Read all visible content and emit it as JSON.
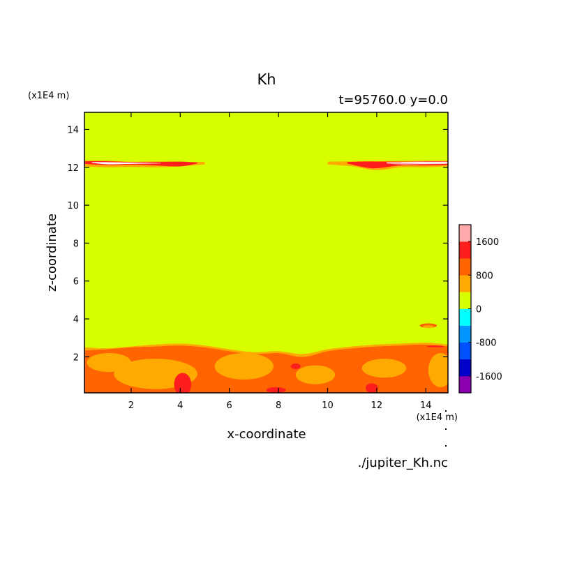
{
  "chart_data": {
    "type": "heatmap",
    "title": "Kh",
    "subtitle": "t=95760.0 y=0.0",
    "xlabel": "x-coordinate",
    "ylabel": "z-coordinate",
    "x_unit": "(x1E4 m)",
    "y_unit": "(x1E4 m)",
    "source_label": "./jupiter_Kh.nc",
    "xlim": [
      0.1,
      14.9
    ],
    "ylim": [
      0.1,
      14.9
    ],
    "xticks": [
      2,
      4,
      6,
      8,
      10,
      12,
      14
    ],
    "yticks": [
      2,
      4,
      6,
      8,
      10,
      12,
      14
    ],
    "colorbar": {
      "levels": [
        -2000,
        -1600,
        -1200,
        -800,
        -400,
        0,
        400,
        800,
        1200,
        1600,
        2000
      ],
      "colors": [
        "#8c00b0",
        "#0000c8",
        "#0050ff",
        "#0096ff",
        "#00ffff",
        "#d8ff00",
        "#ffaa00",
        "#ff6400",
        "#ff1e1e",
        "#ffaaaa"
      ],
      "tick_values": [
        -1600,
        -800,
        0,
        800,
        1600
      ],
      "tick_labels": [
        "-1600",
        "-800",
        "0",
        "800",
        "1600"
      ]
    },
    "background_value": 200,
    "regions": [
      {
        "name": "lower-layer-orange",
        "value": 1000,
        "kind": "ribbon",
        "x": [
          0.1,
          1,
          2,
          3,
          4,
          5,
          6,
          7,
          8,
          9,
          10,
          11,
          12,
          13,
          14,
          14.9
        ],
        "top": [
          2.35,
          2.4,
          2.5,
          2.55,
          2.6,
          2.5,
          2.3,
          2.15,
          2.2,
          2.0,
          2.3,
          2.45,
          2.55,
          2.6,
          2.65,
          2.55
        ],
        "bottom": [
          0.1,
          0.1,
          0.1,
          0.1,
          0.1,
          0.1,
          0.1,
          0.1,
          0.1,
          0.1,
          0.1,
          0.1,
          0.1,
          0.1,
          0.1,
          0.1
        ]
      },
      {
        "name": "lower-layer-light-orange",
        "value": 600,
        "kind": "ribbon",
        "x": [
          0.1,
          1,
          2,
          3,
          4,
          5,
          6,
          7,
          8,
          9,
          10,
          11,
          12,
          13,
          14,
          14.9
        ],
        "top": [
          2.5,
          2.45,
          2.55,
          2.65,
          2.7,
          2.6,
          2.4,
          2.25,
          2.3,
          2.15,
          2.4,
          2.55,
          2.65,
          2.7,
          2.75,
          2.65
        ],
        "bottom": [
          2.35,
          2.4,
          2.5,
          2.55,
          2.6,
          2.5,
          2.3,
          2.15,
          2.2,
          2.0,
          2.3,
          2.45,
          2.55,
          2.6,
          2.65,
          2.55
        ]
      },
      {
        "name": "blob-a",
        "value": 600,
        "kind": "ellipse",
        "cx": 1.1,
        "cz": 1.7,
        "rx": 0.9,
        "rz": 0.5
      },
      {
        "name": "blob-b",
        "value": 600,
        "kind": "ellipse",
        "cx": 3.0,
        "cz": 1.1,
        "rx": 1.7,
        "rz": 0.8
      },
      {
        "name": "blob-c",
        "value": 600,
        "kind": "ellipse",
        "cx": 6.6,
        "cz": 1.5,
        "rx": 1.2,
        "rz": 0.7
      },
      {
        "name": "blob-d",
        "value": 600,
        "kind": "ellipse",
        "cx": 9.5,
        "cz": 1.05,
        "rx": 0.8,
        "rz": 0.5
      },
      {
        "name": "blob-e",
        "value": 600,
        "kind": "ellipse",
        "cx": 12.3,
        "cz": 1.4,
        "rx": 0.9,
        "rz": 0.5
      },
      {
        "name": "blob-f",
        "value": 600,
        "kind": "ellipse",
        "cx": 14.6,
        "cz": 1.3,
        "rx": 0.5,
        "rz": 0.9
      },
      {
        "name": "blob-g",
        "value": 1400,
        "kind": "ellipse",
        "cx": 4.1,
        "cz": 0.55,
        "rx": 0.35,
        "rz": 0.6
      },
      {
        "name": "blob-h",
        "value": 1400,
        "kind": "ellipse",
        "cx": 8.7,
        "cz": 1.5,
        "rx": 0.2,
        "rz": 0.15
      },
      {
        "name": "blob-i",
        "value": 1400,
        "kind": "ellipse",
        "cx": 11.8,
        "cz": 0.35,
        "rx": 0.25,
        "rz": 0.25
      },
      {
        "name": "blob-j",
        "value": 1400,
        "kind": "ellipse",
        "cx": 7.9,
        "cz": 0.25,
        "rx": 0.4,
        "rz": 0.15
      },
      {
        "name": "blob-k",
        "value": 1400,
        "kind": "ellipse",
        "cx": 14.4,
        "cz": 2.55,
        "rx": 0.35,
        "rz": 0.05
      },
      {
        "name": "blob-l",
        "value": 1000,
        "kind": "ellipse",
        "cx": 14.1,
        "cz": 3.65,
        "rx": 0.35,
        "rz": 0.12
      },
      {
        "name": "blob-m",
        "value": 600,
        "kind": "ellipse",
        "cx": 14.1,
        "cz": 3.6,
        "rx": 0.22,
        "rz": 0.06
      },
      {
        "name": "upper-band-left-orange",
        "value": 600,
        "kind": "ribbon",
        "x": [
          0.1,
          1,
          2,
          3,
          4,
          5
        ],
        "top": [
          12.35,
          12.35,
          12.3,
          12.32,
          12.3,
          12.28
        ],
        "bottom": [
          12.05,
          12.0,
          12.02,
          12.0,
          12.05,
          12.15
        ]
      },
      {
        "name": "upper-band-left-red",
        "value": 1400,
        "kind": "ribbon",
        "x": [
          0.1,
          1,
          2,
          3,
          4,
          4.7
        ],
        "top": [
          12.32,
          12.32,
          12.28,
          12.28,
          12.3,
          12.25
        ],
        "bottom": [
          12.18,
          12.12,
          12.14,
          12.1,
          12.05,
          12.2
        ]
      },
      {
        "name": "upper-band-left-white",
        "value": 2200,
        "kind": "ribbon",
        "x": [
          0.4,
          1,
          2,
          3.2
        ],
        "top": [
          12.28,
          12.27,
          12.25,
          12.22
        ],
        "bottom": [
          12.24,
          12.16,
          12.18,
          12.2
        ]
      },
      {
        "name": "upper-band-right-orange",
        "value": 600,
        "kind": "ribbon",
        "x": [
          10,
          11,
          12,
          13,
          14,
          14.9
        ],
        "top": [
          12.3,
          12.32,
          12.32,
          12.33,
          12.35,
          12.35
        ],
        "bottom": [
          12.15,
          12.05,
          11.85,
          12.0,
          12.0,
          12.05
        ]
      },
      {
        "name": "upper-band-right-red",
        "value": 1400,
        "kind": "ribbon",
        "x": [
          10.8,
          11.5,
          12,
          13,
          14,
          14.9
        ],
        "top": [
          12.28,
          12.3,
          12.3,
          12.3,
          12.32,
          12.32
        ],
        "bottom": [
          12.2,
          12.0,
          11.95,
          12.1,
          12.1,
          12.12
        ]
      },
      {
        "name": "upper-band-right-pink",
        "value": 1800,
        "kind": "ribbon",
        "x": [
          12.4,
          13,
          13.8,
          14.9
        ],
        "top": [
          12.28,
          12.29,
          12.3,
          12.3
        ],
        "bottom": [
          12.2,
          12.15,
          12.16,
          12.18
        ]
      },
      {
        "name": "upper-band-right-white",
        "value": 2200,
        "kind": "ribbon",
        "x": [
          13,
          13.8,
          14.9
        ],
        "top": [
          12.26,
          12.27,
          12.27
        ],
        "bottom": [
          12.22,
          12.19,
          12.2
        ]
      }
    ]
  }
}
